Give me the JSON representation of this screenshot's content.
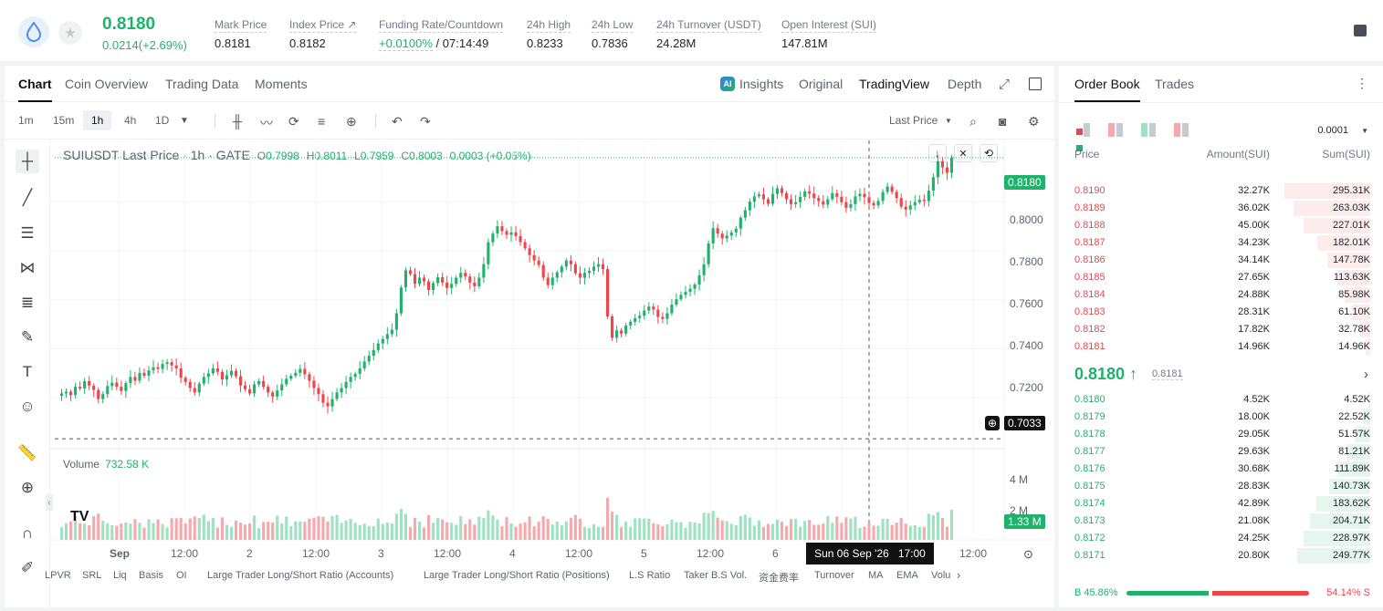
{
  "ticker": {
    "last_price": "0.8180",
    "change": "0.0214(+2.69%)",
    "stats": [
      {
        "label": "Mark Price",
        "value": "0.8181"
      },
      {
        "label": "Index Price ↗",
        "value": "0.8182"
      },
      {
        "label": "Funding Rate/Countdown",
        "value_green": "+0.0100%",
        "value": "/ 07:14:49"
      },
      {
        "label": "24h High",
        "value": "0.8233"
      },
      {
        "label": "24h Low",
        "value": "0.7836"
      },
      {
        "label": "24h Turnover (USDT)",
        "value": "24.28M"
      },
      {
        "label": "Open Interest (SUI)",
        "value": "147.81M"
      }
    ]
  },
  "chart_tabs": [
    "Chart",
    "Coin Overview",
    "Trading Data",
    "Moments"
  ],
  "view_tabs": {
    "insights": "Insights",
    "original": "Original",
    "tradingview": "TradingView",
    "depth": "Depth"
  },
  "ai_badge": "AI",
  "timeframes": [
    "1m",
    "15m",
    "1h",
    "4h",
    "1D"
  ],
  "price_type": "Last Price",
  "legend": {
    "symbol": "SUIUSDT Last Price · 1h · GATE",
    "o": "0.7998",
    "h": "0.8011",
    "l": "0.7959",
    "c": "0.8003",
    "chg": "0.0003 (+0.05%)"
  },
  "volume_legend": {
    "label": "Volume",
    "value": "732.58 K"
  },
  "price_axis": [
    "0.8000",
    "0.7800",
    "0.7600",
    "0.7400",
    "0.7200"
  ],
  "price_tags": {
    "last": "0.8180",
    "cross": "0.7033"
  },
  "volume_axis": [
    "4 M",
    "2 M"
  ],
  "volume_tag": "1.33 M",
  "time_axis": [
    "Sep",
    "12:00",
    "2",
    "12:00",
    "3",
    "12:00",
    "4",
    "12:00",
    "5",
    "12:00",
    "6",
    "12:00"
  ],
  "crosshair_date": {
    "date": "Sun 06 Sep '26",
    "time": "17:00"
  },
  "indicators": [
    "LPVR",
    "SRL",
    "Liq",
    "Basis",
    "OI",
    "Large Trader Long/Short Ratio (Accounts)",
    "Large Trader Long/Short Ratio (Positions)",
    "L.S Ratio",
    "Taker B.S Vol.",
    "资金费率",
    "Turnover",
    "MA",
    "EMA",
    "Volu"
  ],
  "chart_data": {
    "type": "candlestick",
    "title": "SUIUSDT Last Price · 1h · GATE",
    "ylim": [
      0.7,
      0.825
    ],
    "closes": [
      0.7218,
      0.7225,
      0.7212,
      0.7245,
      0.7238,
      0.7268,
      0.725,
      0.7232,
      0.7195,
      0.7215,
      0.7248,
      0.7262,
      0.7245,
      0.7228,
      0.726,
      0.7285,
      0.727,
      0.7302,
      0.729,
      0.7312,
      0.7325,
      0.7318,
      0.7338,
      0.7345,
      0.7332,
      0.732,
      0.7282,
      0.7265,
      0.724,
      0.7222,
      0.7258,
      0.7285,
      0.73,
      0.732,
      0.7306,
      0.7275,
      0.7292,
      0.731,
      0.7288,
      0.725,
      0.7235,
      0.7218,
      0.7255,
      0.7268,
      0.7245,
      0.7222,
      0.7205,
      0.723,
      0.7255,
      0.7278,
      0.729,
      0.7302,
      0.7318,
      0.7296,
      0.727,
      0.724,
      0.7215,
      0.718,
      0.7165,
      0.7195,
      0.7222,
      0.724,
      0.7265,
      0.7285,
      0.7298,
      0.732,
      0.7348,
      0.7372,
      0.7395,
      0.7422,
      0.744,
      0.746,
      0.7478,
      0.7545,
      0.765,
      0.772,
      0.7705,
      0.7665,
      0.769,
      0.7675,
      0.764,
      0.7668,
      0.7692,
      0.767,
      0.7648,
      0.7665,
      0.769,
      0.771,
      0.7695,
      0.767,
      0.7655,
      0.769,
      0.7745,
      0.7835,
      0.787,
      0.79,
      0.788,
      0.7865,
      0.7875,
      0.786,
      0.7835,
      0.781,
      0.7782,
      0.776,
      0.7742,
      0.769,
      0.766,
      0.769,
      0.7712,
      0.7735,
      0.776,
      0.7745,
      0.7708,
      0.769,
      0.771,
      0.7718,
      0.7735,
      0.7745,
      0.7725,
      0.7532,
      0.7445,
      0.7475,
      0.7462,
      0.7495,
      0.751,
      0.7525,
      0.7535,
      0.7556,
      0.7572,
      0.756,
      0.753,
      0.7522,
      0.7545,
      0.758,
      0.7602,
      0.762,
      0.7632,
      0.7645,
      0.7662,
      0.77,
      0.7745,
      0.783,
      0.7892,
      0.787,
      0.785,
      0.7862,
      0.7875,
      0.789,
      0.7935,
      0.7965,
      0.8,
      0.8022,
      0.803,
      0.801,
      0.7992,
      0.8032,
      0.8055,
      0.8035,
      0.801,
      0.799,
      0.7998,
      0.802,
      0.8042,
      0.8033,
      0.8015,
      0.8002,
      0.7988,
      0.801,
      0.8035,
      0.802,
      0.7998,
      0.7975,
      0.799,
      0.8022,
      0.8032,
      0.8018,
      0.7995,
      0.7985,
      0.8003,
      0.804,
      0.8062,
      0.804,
      0.8015,
      0.798,
      0.7968,
      0.7985,
      0.7998,
      0.8008,
      0.8003,
      0.8045,
      0.81,
      0.8165,
      0.814,
      0.8118,
      0.818
    ],
    "volume_max": 5000000
  },
  "order_book": {
    "tabs": [
      "Order Book",
      "Trades"
    ],
    "precision": "0.0001",
    "headers": {
      "price": "Price",
      "amount": "Amount(SUI)",
      "sum": "Sum(SUI)"
    },
    "asks": [
      {
        "price": "0.8190",
        "amount": "32.27K",
        "sum": "295.31K",
        "depth": 0.295
      },
      {
        "price": "0.8189",
        "amount": "36.02K",
        "sum": "263.03K",
        "depth": 0.263
      },
      {
        "price": "0.8188",
        "amount": "45.00K",
        "sum": "227.01K",
        "depth": 0.227
      },
      {
        "price": "0.8187",
        "amount": "34.23K",
        "sum": "182.01K",
        "depth": 0.182
      },
      {
        "price": "0.8186",
        "amount": "34.14K",
        "sum": "147.78K",
        "depth": 0.148
      },
      {
        "price": "0.8185",
        "amount": "27.65K",
        "sum": "113.63K",
        "depth": 0.114
      },
      {
        "price": "0.8184",
        "amount": "24.88K",
        "sum": "85.98K",
        "depth": 0.086
      },
      {
        "price": "0.8183",
        "amount": "28.31K",
        "sum": "61.10K",
        "depth": 0.061
      },
      {
        "price": "0.8182",
        "amount": "17.82K",
        "sum": "32.78K",
        "depth": 0.033
      },
      {
        "price": "0.8181",
        "amount": "14.96K",
        "sum": "14.96K",
        "depth": 0.015
      }
    ],
    "mid_price": "0.8180 ↑",
    "mark_price": "0.8181",
    "bids": [
      {
        "price": "0.8180",
        "amount": "4.52K",
        "sum": "4.52K",
        "depth": 0.005
      },
      {
        "price": "0.8179",
        "amount": "18.00K",
        "sum": "22.52K",
        "depth": 0.023
      },
      {
        "price": "0.8178",
        "amount": "29.05K",
        "sum": "51.57K",
        "depth": 0.052
      },
      {
        "price": "0.8177",
        "amount": "29.63K",
        "sum": "81.21K",
        "depth": 0.081
      },
      {
        "price": "0.8176",
        "amount": "30.68K",
        "sum": "111.89K",
        "depth": 0.112
      },
      {
        "price": "0.8175",
        "amount": "28.83K",
        "sum": "140.73K",
        "depth": 0.141
      },
      {
        "price": "0.8174",
        "amount": "42.89K",
        "sum": "183.62K",
        "depth": 0.184
      },
      {
        "price": "0.8173",
        "amount": "21.08K",
        "sum": "204.71K",
        "depth": 0.205
      },
      {
        "price": "0.8172",
        "amount": "24.25K",
        "sum": "228.97K",
        "depth": 0.229
      },
      {
        "price": "0.8171",
        "amount": "20.80K",
        "sum": "249.77K",
        "depth": 0.25
      }
    ],
    "buy_ratio": "B 45.86%",
    "sell_ratio": "54.14% S",
    "buy_fraction": 0.4586
  },
  "colors": {
    "up": "#20b26c",
    "down": "#ef454a",
    "up_vol": "#9ee2c1",
    "down_vol": "#f6a9ad"
  }
}
